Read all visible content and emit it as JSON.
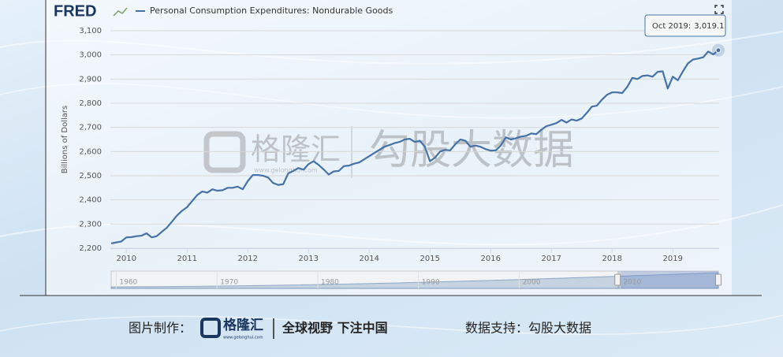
{
  "chart_data": {
    "type": "line",
    "logo": "FRED",
    "y_label": "Billions of Dollars",
    "x": [
      "2009-10",
      "2009-11",
      "2009-12",
      "2010-01",
      "2010-02",
      "2010-03",
      "2010-04",
      "2010-05",
      "2010-06",
      "2010-07",
      "2010-08",
      "2010-09",
      "2010-10",
      "2010-11",
      "2010-12",
      "2011-01",
      "2011-02",
      "2011-03",
      "2011-04",
      "2011-05",
      "2011-06",
      "2011-07",
      "2011-08",
      "2011-09",
      "2011-10",
      "2011-11",
      "2011-12",
      "2012-01",
      "2012-02",
      "2012-03",
      "2012-04",
      "2012-05",
      "2012-06",
      "2012-07",
      "2012-08",
      "2012-09",
      "2012-10",
      "2012-11",
      "2012-12",
      "2013-01",
      "2013-02",
      "2013-03",
      "2013-04",
      "2013-05",
      "2013-06",
      "2013-07",
      "2013-08",
      "2013-09",
      "2013-10",
      "2013-11",
      "2013-12",
      "2014-01",
      "2014-02",
      "2014-03",
      "2014-04",
      "2014-05",
      "2014-06",
      "2014-07",
      "2014-08",
      "2014-09",
      "2014-10",
      "2014-11",
      "2014-12",
      "2015-01",
      "2015-02",
      "2015-03",
      "2015-04",
      "2015-05",
      "2015-06",
      "2015-07",
      "2015-08",
      "2015-09",
      "2015-10",
      "2015-11",
      "2015-12",
      "2016-01",
      "2016-02",
      "2016-03",
      "2016-04",
      "2016-05",
      "2016-06",
      "2016-07",
      "2016-08",
      "2016-09",
      "2016-10",
      "2016-11",
      "2016-12",
      "2017-01",
      "2017-02",
      "2017-03",
      "2017-04",
      "2017-05",
      "2017-06",
      "2017-07",
      "2017-08",
      "2017-09",
      "2017-10",
      "2017-11",
      "2017-12",
      "2018-01",
      "2018-02",
      "2018-03",
      "2018-04",
      "2018-05",
      "2018-06",
      "2018-07",
      "2018-08",
      "2018-09",
      "2018-10",
      "2018-11",
      "2018-12",
      "2019-01",
      "2019-02",
      "2019-03",
      "2019-04",
      "2019-05",
      "2019-06",
      "2019-07",
      "2019-08",
      "2019-09",
      "2019-10"
    ],
    "series": [
      {
        "name": "Personal Consumption Expenditures: Nondurable Goods",
        "color": "#4572a7",
        "values": [
          2220,
          2224,
          2228,
          2245,
          2246,
          2250,
          2252,
          2262,
          2245,
          2250,
          2268,
          2285,
          2310,
          2335,
          2355,
          2370,
          2395,
          2420,
          2435,
          2430,
          2444,
          2438,
          2440,
          2450,
          2450,
          2455,
          2444,
          2478,
          2503,
          2503,
          2500,
          2493,
          2470,
          2462,
          2465,
          2510,
          2520,
          2532,
          2525,
          2548,
          2560,
          2545,
          2526,
          2505,
          2518,
          2520,
          2540,
          2542,
          2550,
          2555,
          2568,
          2581,
          2594,
          2607,
          2620,
          2627,
          2635,
          2640,
          2650,
          2653,
          2640,
          2645,
          2620,
          2560,
          2575,
          2600,
          2607,
          2605,
          2630,
          2650,
          2645,
          2620,
          2625,
          2620,
          2610,
          2604,
          2605,
          2625,
          2659,
          2650,
          2655,
          2662,
          2665,
          2675,
          2672,
          2690,
          2705,
          2711,
          2718,
          2731,
          2720,
          2733,
          2728,
          2737,
          2760,
          2786,
          2790,
          2815,
          2835,
          2845,
          2845,
          2842,
          2868,
          2905,
          2900,
          2913,
          2915,
          2910,
          2930,
          2932,
          2861,
          2910,
          2895,
          2932,
          2965,
          2981,
          2985,
          2990,
          3014,
          3002,
          3019.1
        ]
      }
    ],
    "xlim": [
      "2009-10",
      "2019-10"
    ],
    "xticks": [
      2010,
      2011,
      2012,
      2013,
      2014,
      2015,
      2016,
      2017,
      2018,
      2019
    ],
    "ylim": [
      2200,
      3100
    ],
    "yticks": [
      {
        "value": 2200,
        "label": "2,200"
      },
      {
        "value": 2300,
        "label": "2,300"
      },
      {
        "value": 2400,
        "label": "2,400"
      },
      {
        "value": 2500,
        "label": "2,500"
      },
      {
        "value": 2600,
        "label": "2,600"
      },
      {
        "value": 2700,
        "label": "2,700"
      },
      {
        "value": 2800,
        "label": "2,800"
      },
      {
        "value": 2900,
        "label": "2,900"
      },
      {
        "value": 3000,
        "label": "3,000"
      },
      {
        "value": 3100,
        "label": "3,100"
      }
    ],
    "grid": true,
    "tooltip": {
      "label": "Oct 2019:",
      "value": 3019.1,
      "value_label": "3,019.1"
    },
    "navigator": {
      "xlim": [
        1959.5,
        2019.75
      ],
      "xticks": [
        1960,
        1970,
        1980,
        1990,
        2000,
        2010
      ]
    }
  },
  "watermark": {
    "brand": "格隆汇",
    "url": "www.gelonghui.com",
    "source": "勾股大数据"
  },
  "footer": {
    "made_by_label": "图片制作：",
    "brand": "格隆汇",
    "url": "www.gelonghui.com",
    "slogan": "全球视野 下注中国",
    "source_text": "数据支持：勾股大数据"
  }
}
